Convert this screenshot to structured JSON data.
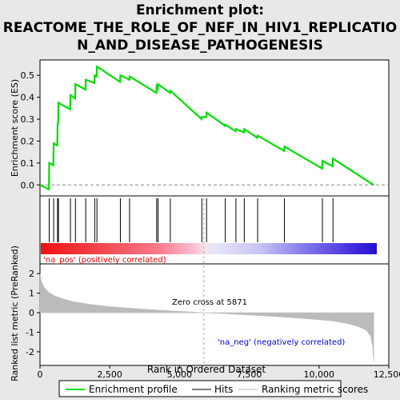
{
  "title_line1": "Enrichment plot:",
  "title_line2": "REACTOME_THE_ROLE_OF_NEF_IN_HIV1_REPLICATIO",
  "title_line3": "N_AND_DISEASE_PATHOGENESIS",
  "colors": {
    "background": "#e8e8e8",
    "profile": "#00dd00",
    "hits": "#000000",
    "metric_fill": "#bbbbbb",
    "pos_label": "#dd0000",
    "neg_label": "#0000cc",
    "zero_line": "#aaaaaa",
    "heat_red": "#ee1111",
    "heat_blue": "#2211dd"
  },
  "annotations": {
    "pos": "'na_pos' (positively correlated)",
    "neg": "'na_neg' (negatively correlated)",
    "zero_cross": "Zero cross at 5871"
  },
  "legend": {
    "profile": "Enrichment profile",
    "hits": "Hits",
    "metric": "Ranking metric scores"
  },
  "chart_data": [
    {
      "type": "line",
      "name": "enrichment_profile",
      "ylabel": "Enrichment score (ES)",
      "xlim": [
        0,
        12500
      ],
      "ylim": [
        -0.05,
        0.57
      ],
      "yticks": [
        0.0,
        0.1,
        0.2,
        0.3,
        0.4,
        0.5
      ],
      "ytick_labels": [
        "0.0",
        "0.1",
        "0.2",
        "0.3",
        "0.4",
        "0.5"
      ],
      "grid": false,
      "x": [
        0,
        320,
        330,
        480,
        490,
        620,
        630,
        650,
        660,
        1080,
        1090,
        1260,
        1270,
        1630,
        1640,
        1950,
        1960,
        2030,
        2040,
        2870,
        2880,
        3200,
        3210,
        4170,
        4180,
        4220,
        4230,
        4660,
        4670,
        5790,
        5800,
        5960,
        5970,
        6630,
        6640,
        7010,
        7020,
        7310,
        7320,
        7790,
        7800,
        8750,
        8760,
        10110,
        10120,
        10490,
        10500,
        11960
      ],
      "y": [
        0.0,
        -0.02,
        0.1,
        0.09,
        0.19,
        0.18,
        0.28,
        0.28,
        0.375,
        0.345,
        0.41,
        0.395,
        0.46,
        0.435,
        0.48,
        0.465,
        0.5,
        0.495,
        0.54,
        0.47,
        0.5,
        0.48,
        0.495,
        0.42,
        0.45,
        0.44,
        0.46,
        0.42,
        0.43,
        0.3,
        0.31,
        0.31,
        0.33,
        0.27,
        0.275,
        0.245,
        0.255,
        0.24,
        0.255,
        0.215,
        0.225,
        0.155,
        0.175,
        0.075,
        0.11,
        0.085,
        0.12,
        0.0
      ]
    },
    {
      "type": "scatter",
      "name": "hits",
      "x": [
        330,
        490,
        630,
        660,
        1090,
        1270,
        1640,
        1960,
        2040,
        2880,
        3210,
        4180,
        4230,
        4670,
        5800,
        5970,
        6640,
        7020,
        7320,
        7800,
        8760,
        10120,
        10500
      ]
    },
    {
      "type": "area",
      "name": "ranking_metric",
      "xlabel": "Rank in Ordered Dataset",
      "ylabel": "Ranked list metric (PreRanked)",
      "xlim": [
        0,
        12500
      ],
      "ylim": [
        -2.7,
        2.5
      ],
      "xticks": [
        0,
        2500,
        5000,
        7500,
        10000,
        12500
      ],
      "xtick_labels": [
        "0",
        "2,500",
        "5,000",
        "7,500",
        "10,000",
        "12,500"
      ],
      "yticks": [
        -2,
        -1,
        0,
        1,
        2
      ],
      "ytick_labels": [
        "-2",
        "-1",
        "0",
        "1",
        "2"
      ],
      "zero_cross": 5871,
      "x": [
        0,
        50,
        150,
        300,
        500,
        800,
        1200,
        1800,
        2500,
        3500,
        4500,
        5500,
        5871,
        6500,
        7500,
        8500,
        9500,
        10500,
        11000,
        11400,
        11700,
        11850,
        11920,
        11960
      ],
      "y": [
        2.0,
        1.6,
        1.3,
        1.05,
        0.88,
        0.72,
        0.56,
        0.42,
        0.31,
        0.2,
        0.11,
        0.03,
        0.0,
        -0.04,
        -0.12,
        -0.2,
        -0.3,
        -0.42,
        -0.55,
        -0.7,
        -0.9,
        -1.2,
        -1.7,
        -2.5
      ]
    }
  ]
}
